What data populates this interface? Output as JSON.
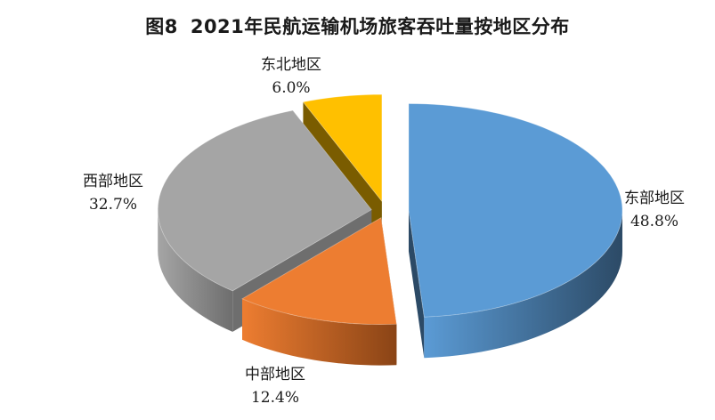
{
  "title": {
    "figure": "图8",
    "text": "2021年民航运输机场旅客吞吐量按地区分布"
  },
  "chart_data": {
    "type": "pie",
    "style": "3d-exploded",
    "title": "2021年民航运输机场旅客吞吐量按地区分布",
    "slices": [
      {
        "name": "东部地区",
        "value": 48.8,
        "value_label": "48.8%",
        "color": "#5b9bd5",
        "side_color": "#2c4a66"
      },
      {
        "name": "中部地区",
        "value": 12.4,
        "value_label": "12.4%",
        "color": "#ed7d31",
        "side_color": "#8a4416"
      },
      {
        "name": "西部地区",
        "value": 32.7,
        "value_label": "32.7%",
        "color": "#a5a5a5",
        "side_color": "#6e6e6e"
      },
      {
        "name": "东北地区",
        "value": 6.0,
        "value_label": "6.0%",
        "color": "#ffc000",
        "side_color": "#7a5c00"
      }
    ],
    "start_angle_deg": 0,
    "direction": "clockwise"
  }
}
